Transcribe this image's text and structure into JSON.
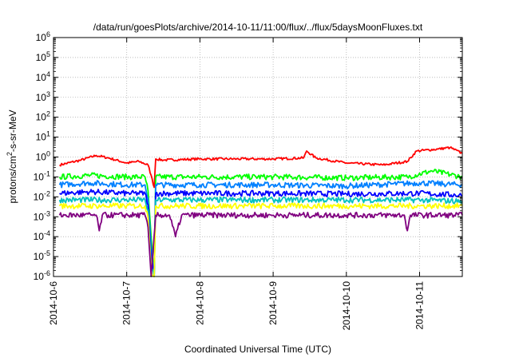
{
  "chart_data": {
    "type": "line",
    "title": "/data/run/goesPlots/archive/2014-10-11/11:00/flux/../flux/5daysMoonFluxes.txt",
    "xlabel": "Coordinated Universal Time (UTC)",
    "ylabel": {
      "prefix": "protons/cm",
      "superscript": "2",
      "suffix": "-s-sr-MeV"
    },
    "yscale": "log",
    "ylim": [
      1e-06,
      1000000.0
    ],
    "xlim": [
      "2014-10-06",
      "2014-10-11T14:00"
    ],
    "x_ticks": [
      "2014-10-6",
      "2014-10-7",
      "2014-10-8",
      "2014-10-9",
      "2014-10-10",
      "2014-10-11"
    ],
    "y_ticks": [
      {
        "base": "10",
        "exp": "6"
      },
      {
        "base": "10",
        "exp": "5"
      },
      {
        "base": "10",
        "exp": "4"
      },
      {
        "base": "10",
        "exp": "3"
      },
      {
        "base": "10",
        "exp": "2"
      },
      {
        "base": "10",
        "exp": "1"
      },
      {
        "base": "10",
        "exp": "0"
      },
      {
        "base": "10",
        "exp": "-1"
      },
      {
        "base": "10",
        "exp": "-2"
      },
      {
        "base": "10",
        "exp": "-3"
      },
      {
        "base": "10",
        "exp": "-4"
      },
      {
        "base": "10",
        "exp": "-5"
      },
      {
        "base": "10",
        "exp": "-6"
      }
    ],
    "grid": true,
    "legend": "none",
    "series": [
      {
        "color": "#ff0000",
        "points": [
          [
            "2014-10-06T02:00",
            0.4
          ],
          [
            "2014-10-06T09:00",
            0.7
          ],
          [
            "2014-10-06T14:00",
            1.2
          ],
          [
            "2014-10-06T18:00",
            0.9
          ],
          [
            "2014-10-07T00:00",
            0.5
          ],
          [
            "2014-10-07T04:00",
            0.6
          ],
          [
            "2014-10-07T07:00",
            0.4
          ],
          [
            "2014-10-07T08:00",
            0.12
          ],
          [
            "2014-10-07T09:00",
            0.03
          ],
          [
            "2014-10-07T09:30",
            0.8
          ],
          [
            "2014-10-07T12:00",
            0.7
          ],
          [
            "2014-10-08T00:00",
            0.8
          ],
          [
            "2014-10-08T12:00",
            0.8
          ],
          [
            "2014-10-09T00:00",
            0.8
          ],
          [
            "2014-10-09T10:00",
            0.9
          ],
          [
            "2014-10-09T11:00",
            2.0
          ],
          [
            "2014-10-09T14:00",
            0.9
          ],
          [
            "2014-10-10T00:00",
            0.5
          ],
          [
            "2014-10-10T12:00",
            0.4
          ],
          [
            "2014-10-10T20:00",
            0.6
          ],
          [
            "2014-10-10T23:00",
            2.0
          ],
          [
            "2014-10-11T06:00",
            2.5
          ],
          [
            "2014-10-11T10:00",
            3.0
          ],
          [
            "2014-10-11T14:00",
            1.5
          ]
        ]
      },
      {
        "color": "#00ff00",
        "points": [
          [
            "2014-10-06T02:00",
            0.1
          ],
          [
            "2014-10-06T12:00",
            0.12
          ],
          [
            "2014-10-07T00:00",
            0.1
          ],
          [
            "2014-10-07T06:00",
            0.1
          ],
          [
            "2014-10-07T07:00",
            0.02
          ],
          [
            "2014-10-07T08:00",
            0.0001
          ],
          [
            "2014-10-07T09:00",
            1e-06
          ],
          [
            "2014-10-07T09:30",
            0.1
          ],
          [
            "2014-10-08T00:00",
            0.1
          ],
          [
            "2014-10-09T00:00",
            0.1
          ],
          [
            "2014-10-10T00:00",
            0.09
          ],
          [
            "2014-10-10T20:00",
            0.1
          ],
          [
            "2014-10-11T04:00",
            0.2
          ],
          [
            "2014-10-11T14:00",
            0.1
          ]
        ]
      },
      {
        "color": "#0080ff",
        "points": [
          [
            "2014-10-06T02:00",
            0.04
          ],
          [
            "2014-10-06T12:00",
            0.05
          ],
          [
            "2014-10-07T00:00",
            0.04
          ],
          [
            "2014-10-07T06:00",
            0.04
          ],
          [
            "2014-10-07T07:00",
            0.008
          ],
          [
            "2014-10-07T08:00",
            3e-05
          ],
          [
            "2014-10-07T09:00",
            1e-06
          ],
          [
            "2014-10-07T09:30",
            0.04
          ],
          [
            "2014-10-08T00:00",
            0.04
          ],
          [
            "2014-10-09T00:00",
            0.04
          ],
          [
            "2014-10-10T00:00",
            0.035
          ],
          [
            "2014-10-11T00:00",
            0.05
          ],
          [
            "2014-10-11T14:00",
            0.04
          ]
        ]
      },
      {
        "color": "#0000ff",
        "points": [
          [
            "2014-10-06T02:00",
            0.015
          ],
          [
            "2014-10-06T12:00",
            0.018
          ],
          [
            "2014-10-07T00:00",
            0.015
          ],
          [
            "2014-10-07T06:00",
            0.015
          ],
          [
            "2014-10-07T07:00",
            0.004
          ],
          [
            "2014-10-07T08:00",
            1e-05
          ],
          [
            "2014-10-07T09:00",
            1e-06
          ],
          [
            "2014-10-07T09:30",
            0.015
          ],
          [
            "2014-10-08T00:00",
            0.015
          ],
          [
            "2014-10-09T00:00",
            0.015
          ],
          [
            "2014-10-10T00:00",
            0.014
          ],
          [
            "2014-10-11T00:00",
            0.015
          ],
          [
            "2014-10-11T14:00",
            0.012
          ]
        ]
      },
      {
        "color": "#00c0c0",
        "points": [
          [
            "2014-10-06T02:00",
            0.007
          ],
          [
            "2014-10-07T00:00",
            0.007
          ],
          [
            "2014-10-07T06:00",
            0.007
          ],
          [
            "2014-10-07T07:00",
            0.002
          ],
          [
            "2014-10-07T08:00",
            3e-06
          ],
          [
            "2014-10-07T09:00",
            1e-06
          ],
          [
            "2014-10-07T09:30",
            0.007
          ],
          [
            "2014-10-08T00:00",
            0.007
          ],
          [
            "2014-10-09T00:00",
            0.007
          ],
          [
            "2014-10-10T00:00",
            0.007
          ],
          [
            "2014-10-11T00:00",
            0.007
          ],
          [
            "2014-10-11T14:00",
            0.006
          ]
        ]
      },
      {
        "color": "#ffff00",
        "points": [
          [
            "2014-10-06T02:00",
            0.0035
          ],
          [
            "2014-10-07T00:00",
            0.0035
          ],
          [
            "2014-10-07T06:00",
            0.0035
          ],
          [
            "2014-10-07T07:00",
            0.001
          ],
          [
            "2014-10-07T08:00",
            2e-06
          ],
          [
            "2014-10-07T09:00",
            1e-06
          ],
          [
            "2014-10-07T09:30",
            0.0035
          ],
          [
            "2014-10-08T00:00",
            0.0035
          ],
          [
            "2014-10-09T00:00",
            0.0035
          ],
          [
            "2014-10-10T00:00",
            0.0035
          ],
          [
            "2014-10-11T00:00",
            0.0035
          ],
          [
            "2014-10-11T14:00",
            0.0035
          ]
        ]
      },
      {
        "color": "#800080",
        "points": [
          [
            "2014-10-06T02:00",
            0.0012
          ],
          [
            "2014-10-06T14:00",
            0.0012
          ],
          [
            "2014-10-06T15:00",
            0.0002
          ],
          [
            "2014-10-06T16:00",
            0.0012
          ],
          [
            "2014-10-07T06:00",
            0.0012
          ],
          [
            "2014-10-07T07:00",
            0.0003
          ],
          [
            "2014-10-07T08:00",
            1e-06
          ],
          [
            "2014-10-07T09:30",
            0.0012
          ],
          [
            "2014-10-07T14:00",
            0.0012
          ],
          [
            "2014-10-07T16:00",
            0.0001
          ],
          [
            "2014-10-07T18:00",
            0.0012
          ],
          [
            "2014-10-09T00:00",
            0.0012
          ],
          [
            "2014-10-10T00:00",
            0.0012
          ],
          [
            "2014-10-10T19:00",
            0.0012
          ],
          [
            "2014-10-10T20:00",
            0.0002
          ],
          [
            "2014-10-10T21:00",
            0.0012
          ],
          [
            "2014-10-11T14:00",
            0.0012
          ]
        ]
      }
    ]
  }
}
